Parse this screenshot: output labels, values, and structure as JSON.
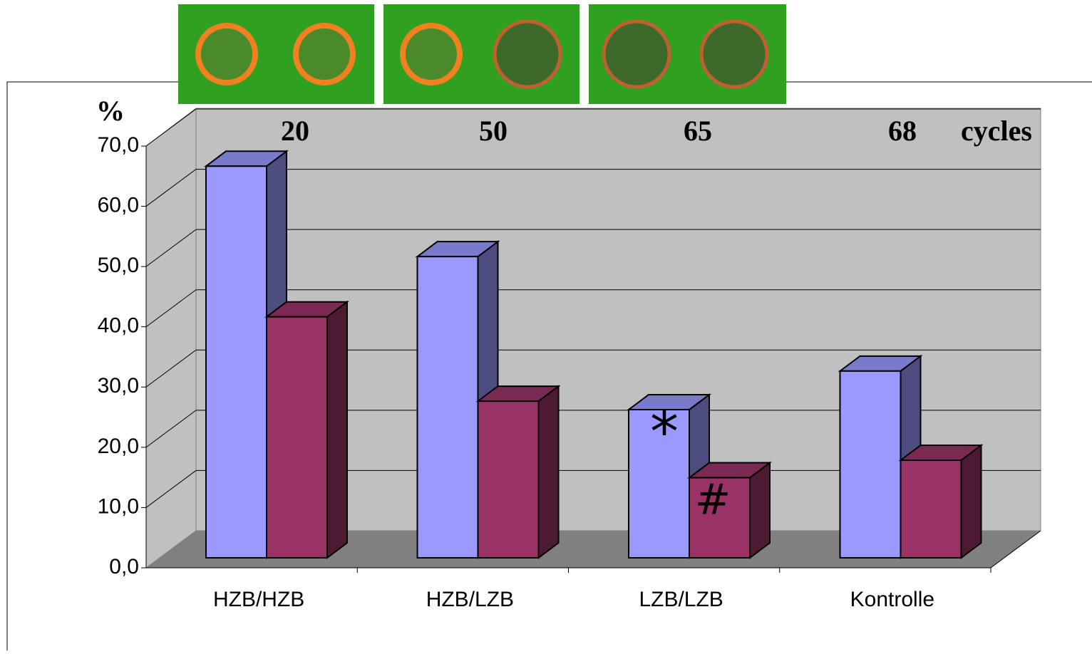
{
  "chart_data": {
    "type": "bar3d",
    "categories": [
      "HZB/HZB",
      "HZB/LZB",
      "LZB/LZB",
      "Kontrolle"
    ],
    "series": [
      {
        "color": "#9999ff",
        "values": [
          65,
          50,
          24.6,
          31
        ]
      },
      {
        "color": "#993366",
        "values": [
          40,
          26,
          13.3,
          16.2
        ]
      }
    ],
    "ylim": [
      0,
      70
    ],
    "yticks": [
      {
        "value": 0,
        "label": "0,0"
      },
      {
        "value": 10,
        "label": "10,0"
      },
      {
        "value": 20,
        "label": "20,0"
      },
      {
        "value": 30,
        "label": "30,0"
      },
      {
        "value": 40,
        "label": "40,0"
      },
      {
        "value": 50,
        "label": "50,0"
      },
      {
        "value": 60,
        "label": "60,0"
      },
      {
        "value": 70,
        "label": "70,0"
      }
    ],
    "grid": true,
    "annotations": [
      "%",
      "20",
      "50",
      "65",
      "68",
      "cycles",
      "*",
      "#"
    ]
  }
}
